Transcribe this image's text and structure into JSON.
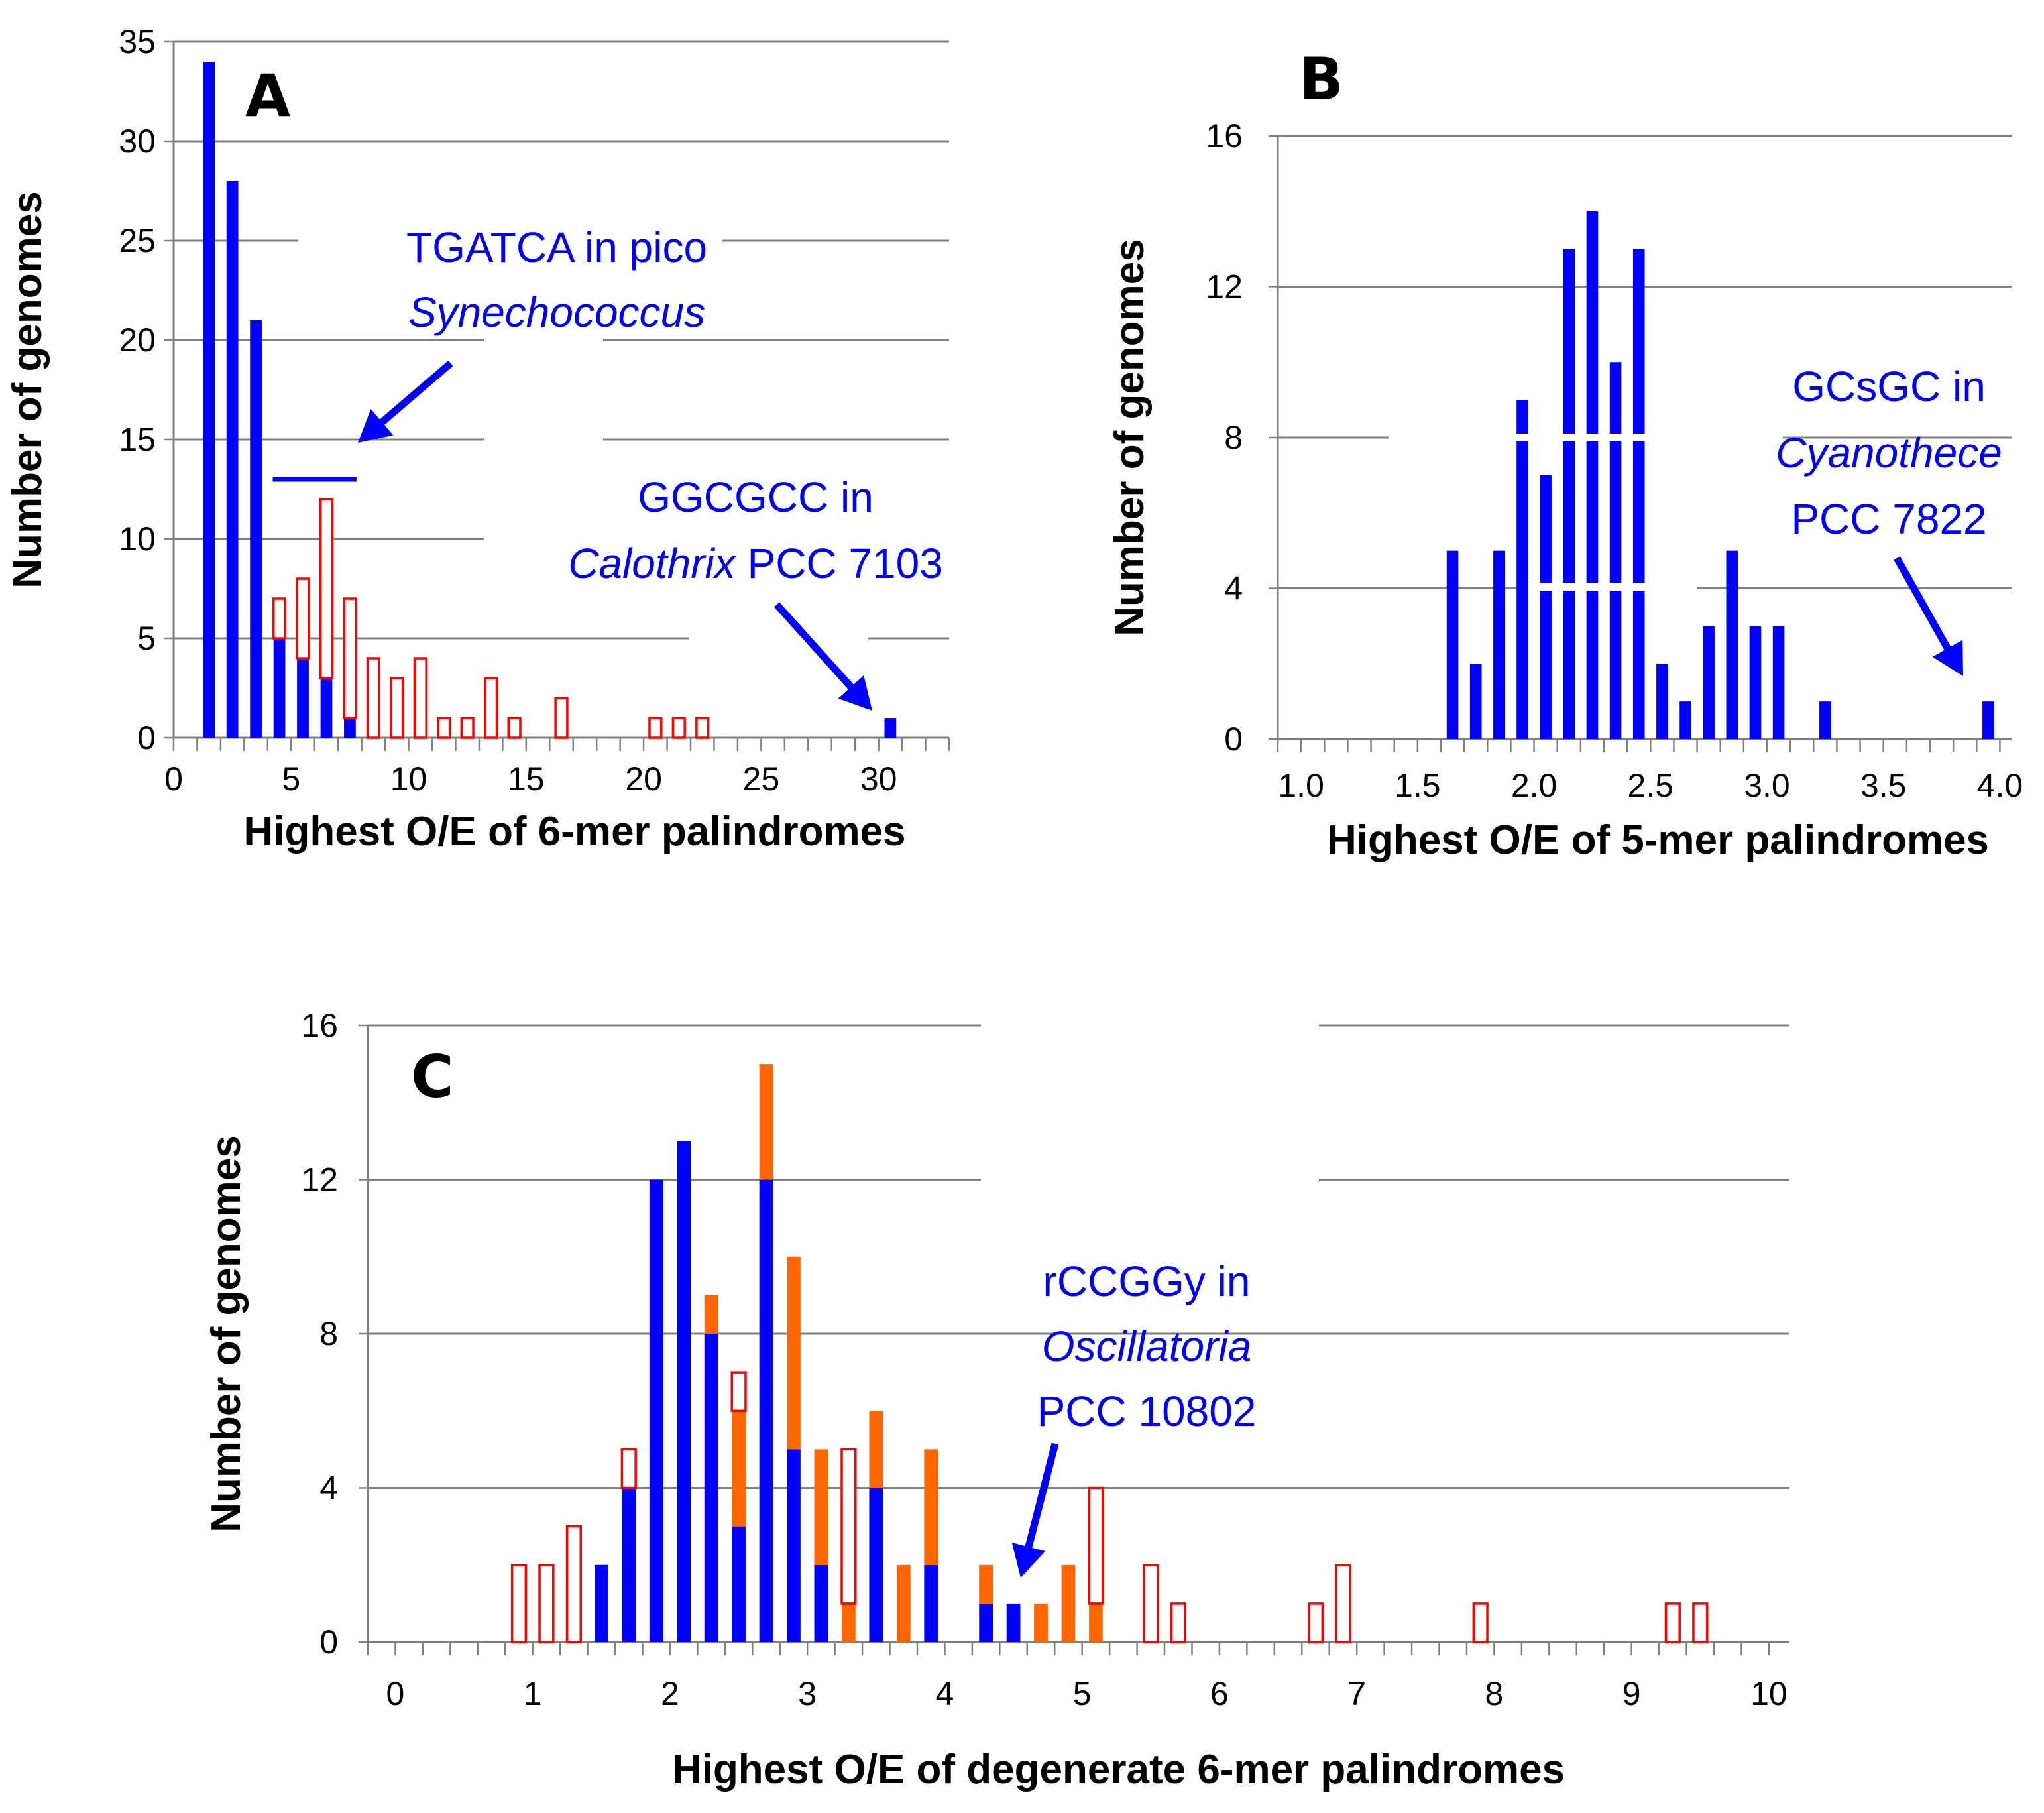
{
  "colors": {
    "blue": "#0000ff",
    "orange": "#ff6600",
    "red": "#ff0000",
    "grid": "#808080",
    "axis": "#808080"
  },
  "chart_data": [
    {
      "id": "A",
      "type": "bar",
      "panel_label": "A",
      "xlabel": "Highest O/E of 6-mer palindromes",
      "ylabel": "Number of genomes",
      "xlim": [
        0,
        33
      ],
      "ylim": [
        0,
        35
      ],
      "xticks": [
        0,
        5,
        10,
        15,
        20,
        25,
        30
      ],
      "yticks": [
        0,
        5,
        10,
        15,
        20,
        25,
        30,
        35
      ],
      "minor_xtick_step": 1,
      "bar_width": 0.5,
      "series": [
        {
          "name": "blue",
          "style": "solid",
          "color": "blue",
          "points": [
            [
              1.5,
              34
            ],
            [
              2.5,
              28
            ],
            [
              3.5,
              21
            ],
            [
              4.5,
              5
            ],
            [
              5.5,
              4
            ],
            [
              6.5,
              3
            ],
            [
              7.5,
              1
            ],
            [
              30.5,
              1
            ]
          ]
        },
        {
          "name": "red-outline",
          "style": "outline",
          "color": "red",
          "points": [
            [
              4.5,
              2
            ],
            [
              5.5,
              4
            ],
            [
              6.5,
              9
            ],
            [
              7.5,
              6
            ],
            [
              8.5,
              4
            ],
            [
              9.5,
              3
            ],
            [
              10.5,
              4
            ],
            [
              11.5,
              1
            ],
            [
              12.5,
              1
            ],
            [
              13.5,
              3
            ],
            [
              14.5,
              1
            ],
            [
              16.5,
              2
            ],
            [
              20.5,
              1
            ],
            [
              21.5,
              1
            ],
            [
              22.5,
              1
            ]
          ]
        }
      ],
      "marker_line": {
        "x": [
          4.5,
          7.5
        ],
        "y": 13
      },
      "annotations": [
        {
          "lines": [
            [
              {
                "t": "TGATCA in pico",
                "i": false
              }
            ],
            [
              {
                "t": "Synechococcus",
                "i": true
              }
            ]
          ]
        },
        {
          "lines": [
            [
              {
                "t": "GGCGCC in",
                "i": false
              }
            ],
            [
              {
                "t": "Calothrix",
                "i": true
              },
              {
                "t": " PCC 7103",
                "i": false
              }
            ]
          ]
        }
      ]
    },
    {
      "id": "B",
      "type": "bar",
      "panel_label": "B",
      "xlabel": "Highest O/E of 5-mer palindromes",
      "ylabel": "Number of genomes",
      "xlim": [
        0.9,
        4.05
      ],
      "ylim": [
        0,
        16
      ],
      "xticks": [
        1.0,
        1.5,
        2.0,
        2.5,
        3.0,
        3.5,
        4.0
      ],
      "xtick_labels": [
        "1.0",
        "1.5",
        "2.0",
        "2.5",
        "3.0",
        "3.5",
        "4.0"
      ],
      "yticks": [
        0,
        4,
        8,
        12,
        16
      ],
      "minor_xtick_step": 0.1,
      "bar_width": 0.05,
      "series": [
        {
          "name": "blue",
          "style": "solid",
          "color": "blue",
          "points": [
            [
              1.65,
              5
            ],
            [
              1.75,
              2
            ],
            [
              1.85,
              5
            ],
            [
              1.95,
              9
            ],
            [
              2.05,
              7
            ],
            [
              2.15,
              13
            ],
            [
              2.25,
              14
            ],
            [
              2.35,
              10
            ],
            [
              2.45,
              13
            ],
            [
              2.55,
              2
            ],
            [
              2.65,
              1
            ],
            [
              2.75,
              3
            ],
            [
              2.85,
              5
            ],
            [
              2.95,
              3
            ],
            [
              3.05,
              3
            ],
            [
              3.25,
              1
            ],
            [
              3.95,
              1
            ]
          ]
        }
      ],
      "annotations": [
        {
          "lines": [
            [
              {
                "t": "GCsGC in",
                "i": false
              }
            ],
            [
              {
                "t": "Cyanothece",
                "i": true
              }
            ],
            [
              {
                "t": "PCC 7822",
                "i": false
              }
            ]
          ]
        }
      ]
    },
    {
      "id": "C",
      "type": "bar",
      "panel_label": "C",
      "xlabel": "Highest O/E of degenerate 6-mer palindromes",
      "ylabel": "Number of genomes",
      "xlim": [
        -0.2,
        10.15
      ],
      "ylim": [
        0,
        16
      ],
      "xticks": [
        0,
        1,
        2,
        3,
        4,
        5,
        6,
        7,
        8,
        9,
        10
      ],
      "yticks": [
        0,
        4,
        8,
        12,
        16
      ],
      "minor_xtick_step": 0.2,
      "bar_width": 0.1,
      "series": [
        {
          "name": "blue",
          "style": "solid",
          "color": "blue",
          "points": [
            [
              1.5,
              2
            ],
            [
              1.7,
              4
            ],
            [
              1.9,
              12
            ],
            [
              2.1,
              13
            ],
            [
              2.3,
              8
            ],
            [
              2.5,
              3
            ],
            [
              2.7,
              12
            ],
            [
              2.9,
              5
            ],
            [
              3.1,
              2
            ],
            [
              3.5,
              4
            ],
            [
              3.9,
              2
            ],
            [
              4.3,
              1
            ],
            [
              4.5,
              1
            ]
          ]
        },
        {
          "name": "orange",
          "style": "solid",
          "color": "orange",
          "points": [
            [
              2.3,
              1
            ],
            [
              2.5,
              3
            ],
            [
              2.7,
              3
            ],
            [
              2.9,
              5
            ],
            [
              3.1,
              3
            ],
            [
              3.3,
              1
            ],
            [
              3.5,
              2
            ],
            [
              3.7,
              2
            ],
            [
              3.9,
              3
            ],
            [
              4.3,
              1
            ],
            [
              4.7,
              1
            ],
            [
              4.9,
              2
            ],
            [
              5.1,
              1
            ]
          ]
        },
        {
          "name": "red-outline",
          "style": "outline",
          "color": "red",
          "points": [
            [
              0.9,
              2
            ],
            [
              1.1,
              2
            ],
            [
              1.3,
              3
            ],
            [
              1.7,
              1
            ],
            [
              2.5,
              1
            ],
            [
              3.3,
              4
            ],
            [
              5.1,
              3
            ],
            [
              5.5,
              2
            ],
            [
              5.7,
              1
            ],
            [
              6.7,
              1
            ],
            [
              6.9,
              2
            ],
            [
              7.9,
              1
            ],
            [
              9.3,
              1
            ],
            [
              9.5,
              1
            ]
          ]
        }
      ],
      "annotations": [
        {
          "lines": [
            [
              {
                "t": "rCCGGy in",
                "i": false
              }
            ],
            [
              {
                "t": "Oscillatoria",
                "i": true
              }
            ],
            [
              {
                "t": "PCC 10802",
                "i": false
              }
            ]
          ]
        }
      ]
    }
  ]
}
